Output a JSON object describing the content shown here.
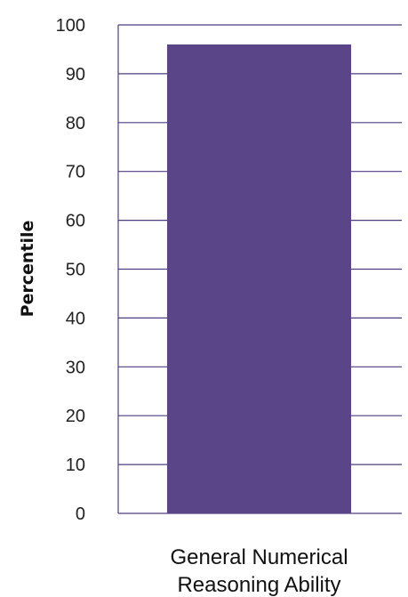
{
  "chart_data": {
    "type": "bar",
    "title": "",
    "ylabel": "Percentile",
    "xlabel": "",
    "categories": [
      "General Numerical Reasoning Ability"
    ],
    "category_label_lines": [
      "General Numerical",
      "Reasoning Ability"
    ],
    "values": [
      96
    ],
    "ylim": [
      0,
      100
    ],
    "yticks": [
      0,
      10,
      20,
      30,
      40,
      50,
      60,
      70,
      80,
      90,
      100
    ],
    "grid": true,
    "legend": "none",
    "colors": {
      "bar": "#5A4589",
      "grid": "#4E3D80",
      "tick_text": "#222222"
    }
  }
}
